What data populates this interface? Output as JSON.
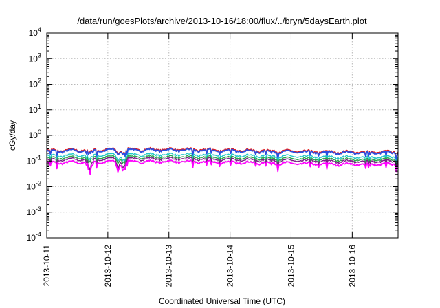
{
  "chart_data": {
    "type": "line",
    "title": "/data/run/goesPlots/archive/2013-10-16/18:00/flux/../bryn/5daysEarth.plot",
    "xlabel": "Coordinated Universal Time (UTC)",
    "ylabel": "cGy/day",
    "yscale": "log",
    "ylim": [
      0.0001,
      10000
    ],
    "xlim": [
      "2013-10-11",
      "2013-10-16 18:00"
    ],
    "x_ticks": [
      "2013-10-11",
      "2013-10-12",
      "2013-10-13",
      "2013-10-14",
      "2013-10-15",
      "2013-10-16"
    ],
    "y_ticks": [
      {
        "base": "10",
        "exp": "-4"
      },
      {
        "base": "10",
        "exp": "-3"
      },
      {
        "base": "10",
        "exp": "-2"
      },
      {
        "base": "10",
        "exp": "-1"
      },
      {
        "base": "10",
        "exp": "0"
      },
      {
        "base": "10",
        "exp": "1"
      },
      {
        "base": "10",
        "exp": "2"
      },
      {
        "base": "10",
        "exp": "3"
      },
      {
        "base": "10",
        "exp": "4"
      }
    ],
    "grid": true,
    "series": [
      {
        "color": "#e41a1c",
        "level": 0.26
      },
      {
        "color": "#2b4ee0",
        "level": 0.24
      },
      {
        "color": "#20c8c8",
        "level": 0.16
      },
      {
        "color": "#2aa84a",
        "level": 0.13
      },
      {
        "color": "#7a1e86",
        "level": 0.11
      },
      {
        "color": "#ff00ff",
        "level": 0.085
      }
    ],
    "dip_events": [
      "2013-10-11 17:00",
      "2013-10-12 04:00",
      "2013-10-12 06:00"
    ]
  }
}
